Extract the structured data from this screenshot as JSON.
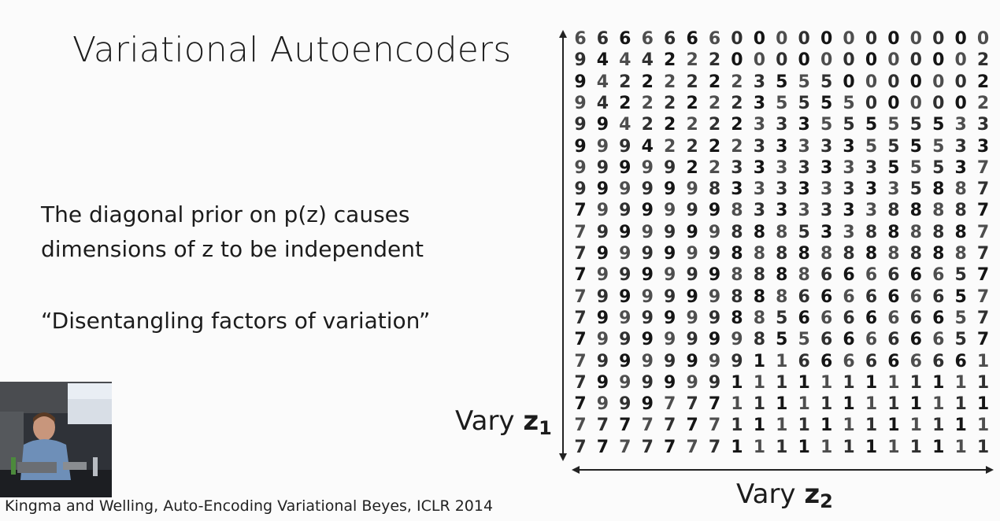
{
  "slide": {
    "title": "Variational Autoencoders",
    "lines": [
      "The diagonal prior on p(z) causes",
      "dimensions of z to be independent",
      "“Disentangling factors of variation”"
    ],
    "citation": "Kingma and Welling, Auto-Encoding Variational Beyes, ICLR 2014"
  },
  "axes": {
    "y_label": "Vary",
    "y_var": "z",
    "y_sub": "1",
    "x_label": "Vary",
    "x_var": "z",
    "x_sub": "2"
  },
  "digit_grid": [
    "6666666000000000000",
    "9444222000000000002",
    "9422222235550000002",
    "9422222235555000002",
    "9942222233355555533",
    "9994222233333555533",
    "9999922333333355537",
    "9999998333333335887",
    "7999999833333388887",
    "7999999888533888887",
    "7999999888888888887",
    "7999999888866666657",
    "7999999888666666657",
    "7999999885666666657",
    "7999999985566666657",
    "7999999911666666661",
    "7999999111111111111",
    "7999777111111111111",
    "7777777111111111111",
    "7777777111111111111"
  ]
}
